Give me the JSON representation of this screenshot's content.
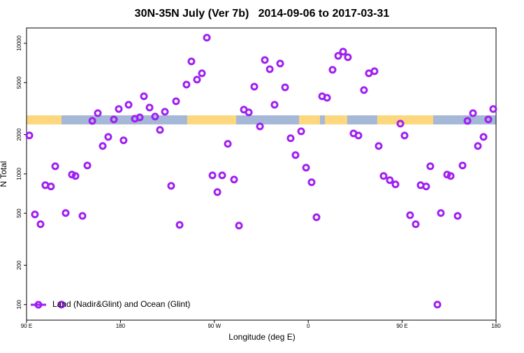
{
  "chart_data": {
    "type": "scatter",
    "title": "30N-35N July (Ver 7b)   2014-09-06 to 2017-03-31",
    "x_label": "Longitude (deg E)",
    "y_label": "N Total",
    "log_y": true,
    "legend": "bottom-left",
    "xlim": [
      90,
      540
    ],
    "xticks": [
      {
        "value": 90,
        "label": "90 E"
      },
      {
        "value": 180,
        "label": "180"
      },
      {
        "value": 270,
        "label": "90 W"
      },
      {
        "value": 360,
        "label": "0"
      },
      {
        "value": 450,
        "label": "90 E"
      },
      {
        "value": 540,
        "label": "180"
      }
    ],
    "ylim": [
      76,
      13100
    ],
    "yticks": [
      100,
      200,
      500,
      1000,
      2000,
      5000,
      10000
    ],
    "series": [
      {
        "name": "Land (Nadir&Glint) and Ocean (Glint)",
        "color": "#a020f0",
        "x": [
          92.7,
          98,
          103.4,
          108,
          113.4,
          117.5,
          123.5,
          127.5,
          133.5,
          136.9,
          143.6,
          148.3,
          153,
          158.3,
          163,
          168.3,
          173.7,
          178.4,
          183,
          187.8,
          193.8,
          198.5,
          202.5,
          207.9,
          213.2,
          217.9,
          222.6,
          228.6,
          233.3,
          236.7,
          243.3,
          248,
          253.4,
          258.1,
          262.8,
          268.2,
          272.9,
          277.5,
          282.9,
          288.9,
          293.6,
          298.3,
          303,
          308.3,
          313.7,
          318.4,
          323.1,
          327.7,
          333.1,
          337.8,
          343.1,
          347.8,
          353.2,
          357.9,
          363.2,
          367.9,
          373.3,
          378,
          383.3,
          388.7,
          393.4,
          398,
          403.4,
          408.1,
          413.4,
          418.1,
          423.5,
          427.5,
          432.2,
          438.2,
          443.6,
          448.3,
          452.3,
          457.6,
          463,
          467.7,
          473,
          477,
          483.8,
          487.1,
          493.1,
          496.5,
          503.2,
          507.9,
          512.6,
          517.9,
          522.6,
          528,
          532.6,
          537.3
        ],
        "values": [
          1970,
          490,
          412,
          820,
          802,
          1145,
          100,
          502,
          988,
          964,
          477,
          1160,
          2547,
          2917,
          1636,
          1920,
          2612,
          3140,
          1808,
          3382,
          2645,
          2709,
          3928,
          3220,
          2748,
          2171,
          2993,
          811,
          3597,
          407,
          4831,
          7260,
          5272,
          5888,
          11040,
          975,
          726,
          975,
          1700,
          906,
          402,
          3104,
          2958,
          4656,
          2311,
          7443,
          6337,
          3382,
          7000,
          4600,
          1875,
          1393,
          2118,
          1117,
          863,
          466,
          3928,
          3828,
          6265,
          8010,
          8636,
          7820,
          2041,
          1968,
          4384,
          5888,
          6110,
          1636,
          964,
          896,
          832,
          2426,
          1968,
          483,
          412,
          820,
          802,
          1145,
          100,
          502,
          988,
          964,
          477,
          1160,
          2547,
          2917,
          1636,
          1920,
          2612,
          3140
        ]
      }
    ]
  }
}
